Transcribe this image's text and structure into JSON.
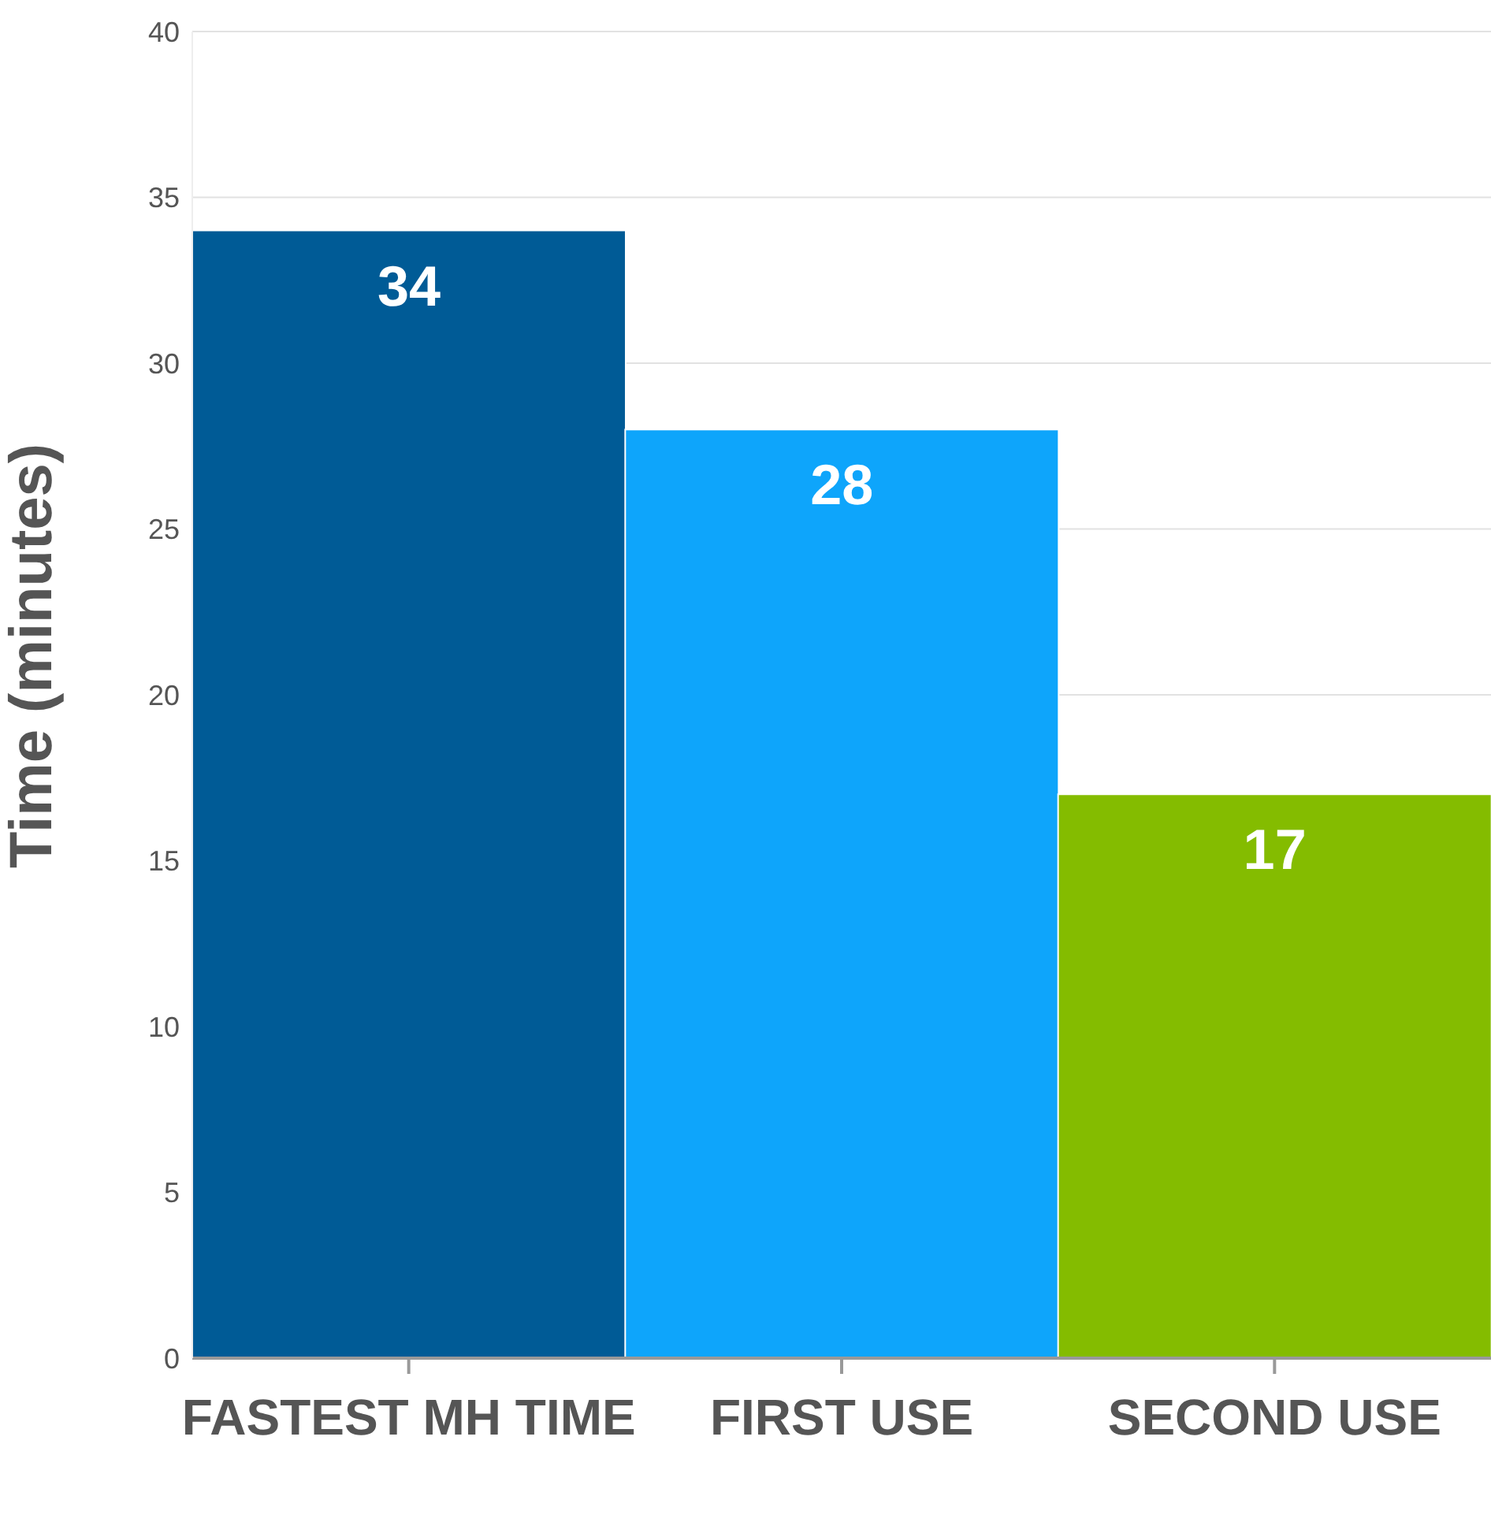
{
  "chart_data": {
    "type": "bar",
    "ylabel": "Time (minutes)",
    "categories": [
      "FASTEST MH TIME",
      "FIRST USE",
      "SECOND USE"
    ],
    "values": [
      34,
      28,
      17
    ],
    "colors": [
      "#005b96",
      "#0ea5fb",
      "#84bc00"
    ],
    "ylim": [
      0,
      40
    ],
    "yticks": [
      0,
      5,
      10,
      15,
      20,
      25,
      30,
      35,
      40
    ],
    "grid": "y",
    "data_labels": true,
    "legend": false
  }
}
